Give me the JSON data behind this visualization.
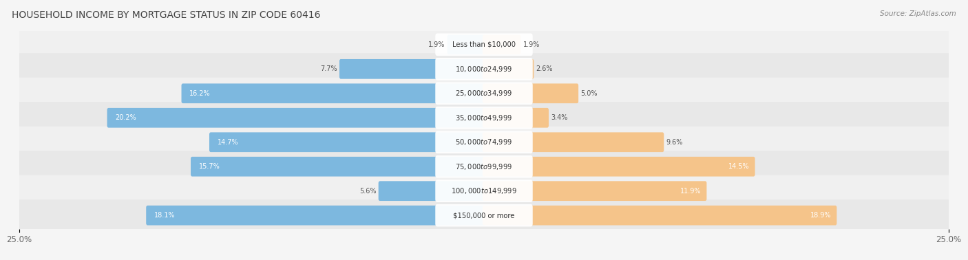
{
  "title": "HOUSEHOLD INCOME BY MORTGAGE STATUS IN ZIP CODE 60416",
  "source": "Source: ZipAtlas.com",
  "categories": [
    "Less than $10,000",
    "$10,000 to $24,999",
    "$25,000 to $34,999",
    "$35,000 to $49,999",
    "$50,000 to $74,999",
    "$75,000 to $99,999",
    "$100,000 to $149,999",
    "$150,000 or more"
  ],
  "without_mortgage": [
    1.9,
    7.7,
    16.2,
    20.2,
    14.7,
    15.7,
    5.6,
    18.1
  ],
  "with_mortgage": [
    1.9,
    2.6,
    5.0,
    3.4,
    9.6,
    14.5,
    11.9,
    18.9
  ],
  "color_without": "#7db8df",
  "color_with": "#f5c48a",
  "row_colors": [
    "#f0f0f0",
    "#e8e8e8"
  ],
  "xlim": 25.0,
  "bg_fig": "#f5f5f5",
  "bar_height": 0.65,
  "label_pill_color": "#ffffff",
  "title_color": "#444444",
  "source_color": "#888888",
  "tick_color": "#666666",
  "label_dark": "#555555",
  "label_white": "#ffffff"
}
